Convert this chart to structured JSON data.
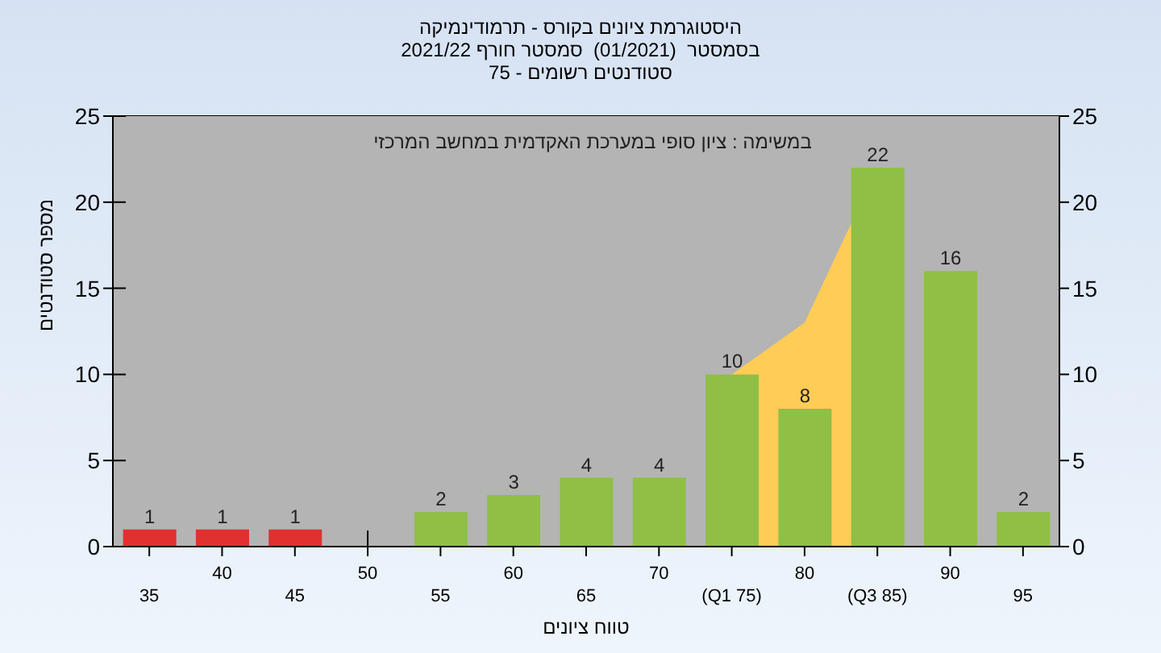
{
  "chart_data": {
    "type": "bar",
    "title": "היסטוגרמת ציונים בקורס - תרמודינמיקה",
    "subtitle": "בסמסטר  (01/2021)  סמסטר חורף 2021/22\nסטודנטים רשומים - 75",
    "xlabel": "טווח ציונים",
    "ylabel": "מספר סטודנטים",
    "annotations": [
      "במשימה : ציון סופי במערכת האקדמית במחשב המרכזי"
    ],
    "categories": [
      "35",
      "40",
      "45",
      "50",
      "55",
      "60",
      "65",
      "70",
      "(Q1 75)",
      "80",
      "(Q3 85)",
      "90",
      "95"
    ],
    "series": [
      {
        "type": "area",
        "color": "#ffcc55",
        "values": [
          null,
          null,
          null,
          null,
          null,
          null,
          null,
          null,
          10,
          13,
          22,
          null,
          null
        ]
      },
      {
        "values": [
          1,
          1,
          1,
          0,
          2,
          3,
          4,
          4,
          10,
          8,
          22,
          16,
          2
        ],
        "colors": [
          "#e03030",
          "#e03030",
          "#e03030",
          "#8fbf45",
          "#8fbf45",
          "#8fbf45",
          "#8fbf45",
          "#8fbf45",
          "#8fbf45",
          "#8fbf45",
          "#8fbf45",
          "#8fbf45",
          "#8fbf45"
        ],
        "value_labels": [
          "1",
          "1",
          "1",
          null,
          "2",
          "3",
          "4",
          "4",
          "10",
          "8",
          "22",
          "16",
          "2"
        ]
      }
    ],
    "ylim": [
      0,
      25
    ],
    "yticks": [
      0,
      5,
      10,
      15,
      20,
      25
    ],
    "y2lim": [
      0,
      25
    ],
    "y2ticks": [
      0,
      5,
      10,
      15,
      20,
      25
    ],
    "grid": true
  }
}
